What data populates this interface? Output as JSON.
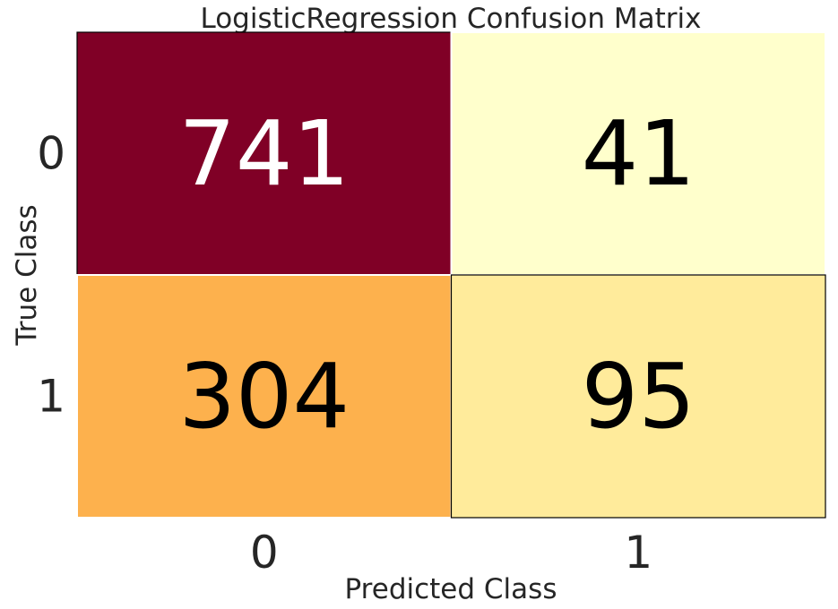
{
  "chart_data": {
    "type": "heatmap",
    "title": "LogisticRegression Confusion Matrix",
    "xlabel": "Predicted Class",
    "ylabel": "True Class",
    "x_categories": [
      "0",
      "1"
    ],
    "y_categories": [
      "0",
      "1"
    ],
    "values": [
      [
        741,
        41
      ],
      [
        304,
        95
      ]
    ],
    "cell_colors": [
      [
        "#800026",
        "#ffffcc"
      ],
      [
        "#fdb14d",
        "#ffeb9b"
      ]
    ],
    "text_colors": [
      [
        "#ffffff",
        "#000000"
      ],
      [
        "#000000",
        "#000000"
      ]
    ],
    "colormap": "YlOrRd",
    "grid": false
  }
}
